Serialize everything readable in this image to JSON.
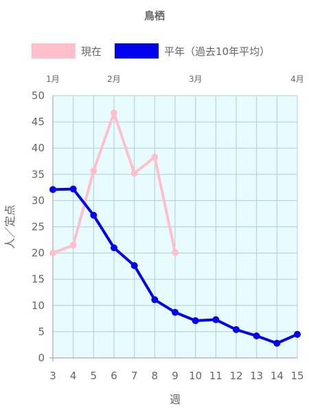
{
  "chart_data": {
    "type": "line",
    "title": "鳥栖",
    "xlabel": "週",
    "ylabel": "人／定点",
    "x": [
      3,
      4,
      5,
      6,
      7,
      8,
      9,
      10,
      11,
      12,
      13,
      14,
      15
    ],
    "ylim": [
      0,
      50
    ],
    "yticks": [
      0,
      5,
      10,
      15,
      20,
      25,
      30,
      35,
      40,
      45,
      50
    ],
    "grid": true,
    "legend_position": "top",
    "month_labels": [
      {
        "label": "1月",
        "week": 3
      },
      {
        "label": "2月",
        "week": 6
      },
      {
        "label": "3月",
        "week": 10
      },
      {
        "label": "4月",
        "week": 15
      }
    ],
    "series": [
      {
        "name": "現在",
        "color": "#ffc0cb",
        "values": [
          20.0,
          21.5,
          35.7,
          46.7,
          35.2,
          38.3,
          20.1,
          null,
          null,
          null,
          null,
          null,
          null
        ]
      },
      {
        "name": "平年（過去10年平均）",
        "color": "#0000ee",
        "values": [
          32.1,
          32.2,
          27.2,
          21.0,
          17.6,
          11.1,
          8.7,
          7.1,
          7.3,
          5.4,
          4.2,
          2.8,
          4.5
        ]
      }
    ],
    "colors": {
      "plot_bg": "#e8fcff",
      "grid": "#b0ccd4",
      "axis_text": "#666666"
    }
  }
}
